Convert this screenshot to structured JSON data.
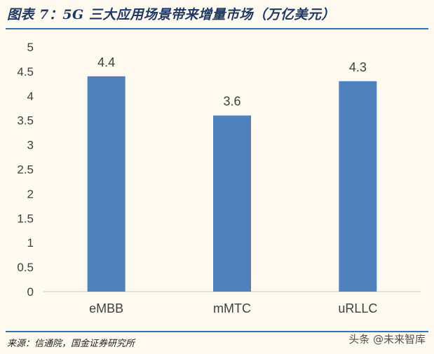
{
  "header": {
    "title": "图表 7：5G 三大应用场景带来增量市场（万亿美元）"
  },
  "chart_data": {
    "type": "bar",
    "categories": [
      "eMBB",
      "mMTC",
      "uRLLC"
    ],
    "values": [
      4.4,
      3.6,
      4.3
    ],
    "value_labels": [
      "4.4",
      "3.6",
      "4.3"
    ],
    "ylim": [
      0,
      5
    ],
    "yticks": [
      "0",
      "0.5",
      "1",
      "1.5",
      "2",
      "2.5",
      "3",
      "3.5",
      "4",
      "4.5",
      "5"
    ],
    "grid": false,
    "legend": "none",
    "bar_color": "#4f81bd"
  },
  "footer": {
    "source": "来源：信通院，国金证券研究所",
    "watermark": "头条 @未来智库"
  }
}
